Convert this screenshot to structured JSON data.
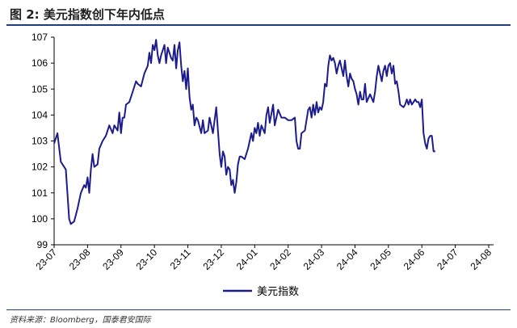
{
  "header": {
    "title": "图 2:  美元指数创下年内低点"
  },
  "source": "资料来源：Bloomberg，国泰君安国际",
  "chart_data": {
    "type": "line",
    "title": "",
    "xlabel": "",
    "ylabel": "",
    "ylim": [
      99,
      107
    ],
    "y_ticks": [
      99,
      100,
      101,
      102,
      103,
      104,
      105,
      106,
      107
    ],
    "x_tick_labels": [
      "23-07",
      "23-08",
      "23-09",
      "23-10",
      "23-11",
      "23-12",
      "24-01",
      "24-02",
      "24-03",
      "24-04",
      "24-05",
      "24-06",
      "24-07",
      "24-08"
    ],
    "grid": false,
    "legend_position": "bottom-center",
    "series": [
      {
        "name": "美元指数",
        "color": "#1c1c8c",
        "points": [
          [
            0.0,
            102.9
          ],
          [
            0.1,
            103.3
          ],
          [
            0.2,
            102.2
          ],
          [
            0.35,
            101.9
          ],
          [
            0.45,
            100.0
          ],
          [
            0.5,
            99.8
          ],
          [
            0.6,
            99.9
          ],
          [
            0.7,
            100.4
          ],
          [
            0.8,
            101.0
          ],
          [
            0.9,
            101.3
          ],
          [
            0.95,
            101.2
          ],
          [
            1.0,
            101.6
          ],
          [
            1.05,
            101.0
          ],
          [
            1.1,
            101.9
          ],
          [
            1.15,
            102.5
          ],
          [
            1.2,
            102.0
          ],
          [
            1.3,
            102.1
          ],
          [
            1.35,
            102.7
          ],
          [
            1.45,
            103.0
          ],
          [
            1.55,
            103.2
          ],
          [
            1.65,
            103.6
          ],
          [
            1.75,
            103.3
          ],
          [
            1.8,
            103.6
          ],
          [
            1.9,
            103.4
          ],
          [
            1.95,
            104.1
          ],
          [
            2.0,
            103.3
          ],
          [
            2.05,
            103.9
          ],
          [
            2.1,
            103.9
          ],
          [
            2.15,
            104.4
          ],
          [
            2.25,
            104.5
          ],
          [
            2.35,
            104.9
          ],
          [
            2.45,
            105.3
          ],
          [
            2.5,
            105.2
          ],
          [
            2.6,
            105.1
          ],
          [
            2.7,
            105.6
          ],
          [
            2.8,
            105.9
          ],
          [
            2.85,
            106.4
          ],
          [
            2.9,
            106.0
          ],
          [
            2.95,
            106.7
          ],
          [
            3.0,
            106.5
          ],
          [
            3.05,
            106.9
          ],
          [
            3.1,
            106.3
          ],
          [
            3.15,
            106.0
          ],
          [
            3.2,
            106.3
          ],
          [
            3.3,
            106.7
          ],
          [
            3.35,
            106.0
          ],
          [
            3.4,
            106.6
          ],
          [
            3.5,
            106.2
          ],
          [
            3.55,
            106.1
          ],
          [
            3.6,
            106.7
          ],
          [
            3.65,
            105.8
          ],
          [
            3.7,
            106.5
          ],
          [
            3.75,
            106.8
          ],
          [
            3.8,
            105.9
          ],
          [
            3.85,
            105.3
          ],
          [
            3.9,
            105.7
          ],
          [
            3.95,
            105.0
          ],
          [
            4.0,
            105.8
          ],
          [
            4.05,
            104.7
          ],
          [
            4.1,
            104.2
          ],
          [
            4.15,
            104.4
          ],
          [
            4.2,
            103.6
          ],
          [
            4.25,
            103.9
          ],
          [
            4.3,
            103.8
          ],
          [
            4.4,
            103.3
          ],
          [
            4.45,
            103.8
          ],
          [
            4.5,
            103.3
          ],
          [
            4.6,
            103.4
          ],
          [
            4.65,
            103.9
          ],
          [
            4.75,
            103.3
          ],
          [
            4.85,
            104.3
          ],
          [
            4.95,
            102.5
          ],
          [
            5.0,
            102.0
          ],
          [
            5.05,
            102.6
          ],
          [
            5.1,
            102.4
          ],
          [
            5.15,
            101.7
          ],
          [
            5.2,
            102.0
          ],
          [
            5.25,
            101.9
          ],
          [
            5.3,
            101.3
          ],
          [
            5.35,
            101.5
          ],
          [
            5.4,
            101.0
          ],
          [
            5.45,
            101.4
          ],
          [
            5.5,
            102.1
          ],
          [
            5.55,
            102.4
          ],
          [
            5.6,
            102.4
          ],
          [
            5.7,
            102.3
          ],
          [
            5.8,
            102.7
          ],
          [
            5.9,
            103.3
          ],
          [
            5.95,
            103.0
          ],
          [
            6.0,
            103.5
          ],
          [
            6.05,
            103.3
          ],
          [
            6.1,
            103.7
          ],
          [
            6.15,
            103.2
          ],
          [
            6.2,
            103.6
          ],
          [
            6.3,
            103.3
          ],
          [
            6.35,
            104.0
          ],
          [
            6.4,
            104.3
          ],
          [
            6.45,
            103.7
          ],
          [
            6.55,
            104.4
          ],
          [
            6.6,
            103.6
          ],
          [
            6.7,
            104.2
          ],
          [
            6.8,
            103.9
          ],
          [
            6.9,
            103.9
          ],
          [
            7.0,
            103.8
          ],
          [
            7.1,
            103.8
          ],
          [
            7.2,
            103.9
          ],
          [
            7.25,
            103.0
          ],
          [
            7.3,
            102.7
          ],
          [
            7.35,
            102.7
          ],
          [
            7.4,
            103.3
          ],
          [
            7.5,
            103.4
          ],
          [
            7.6,
            104.2
          ],
          [
            7.65,
            104.3
          ],
          [
            7.7,
            103.9
          ],
          [
            7.75,
            104.4
          ],
          [
            7.8,
            104.0
          ],
          [
            7.85,
            104.5
          ],
          [
            7.9,
            104.1
          ],
          [
            7.95,
            104.3
          ],
          [
            8.0,
            104.2
          ],
          [
            8.05,
            104.5
          ],
          [
            8.1,
            105.2
          ],
          [
            8.15,
            105.1
          ],
          [
            8.2,
            105.9
          ],
          [
            8.25,
            106.3
          ],
          [
            8.3,
            106.1
          ],
          [
            8.35,
            106.2
          ],
          [
            8.4,
            106.0
          ],
          [
            8.45,
            105.6
          ],
          [
            8.5,
            105.9
          ],
          [
            8.55,
            106.1
          ],
          [
            8.6,
            105.8
          ],
          [
            8.65,
            105.5
          ],
          [
            8.7,
            106.1
          ],
          [
            8.75,
            105.5
          ],
          [
            8.8,
            105.1
          ],
          [
            8.85,
            105.6
          ],
          [
            8.9,
            105.4
          ],
          [
            8.95,
            105.3
          ],
          [
            9.0,
            105.0
          ],
          [
            9.05,
            104.8
          ],
          [
            9.1,
            104.4
          ],
          [
            9.15,
            104.9
          ],
          [
            9.2,
            104.6
          ],
          [
            9.25,
            104.6
          ],
          [
            9.3,
            105.2
          ],
          [
            9.35,
            104.5
          ],
          [
            9.45,
            104.8
          ],
          [
            9.55,
            104.5
          ],
          [
            9.6,
            104.9
          ],
          [
            9.65,
            105.5
          ],
          [
            9.7,
            105.9
          ],
          [
            9.75,
            105.6
          ],
          [
            9.8,
            105.3
          ],
          [
            9.85,
            105.7
          ],
          [
            9.9,
            105.9
          ],
          [
            9.95,
            105.5
          ],
          [
            10.0,
            105.9
          ],
          [
            10.05,
            106.0
          ],
          [
            10.1,
            105.6
          ],
          [
            10.15,
            105.9
          ],
          [
            10.2,
            105.2
          ],
          [
            10.25,
            105.3
          ],
          [
            10.3,
            104.9
          ],
          [
            10.35,
            104.4
          ],
          [
            10.45,
            104.3
          ],
          [
            10.5,
            104.4
          ],
          [
            10.55,
            104.6
          ],
          [
            10.6,
            104.4
          ],
          [
            10.65,
            104.6
          ],
          [
            10.7,
            104.4
          ],
          [
            10.75,
            104.5
          ],
          [
            10.8,
            104.6
          ],
          [
            10.85,
            104.5
          ],
          [
            10.9,
            104.5
          ],
          [
            10.95,
            104.3
          ],
          [
            11.0,
            104.6
          ],
          [
            11.05,
            103.3
          ],
          [
            11.1,
            102.9
          ],
          [
            11.15,
            102.7
          ],
          [
            11.2,
            103.1
          ],
          [
            11.25,
            103.2
          ],
          [
            11.3,
            103.2
          ],
          [
            11.35,
            102.6
          ],
          [
            11.4,
            102.6
          ]
        ]
      }
    ]
  }
}
